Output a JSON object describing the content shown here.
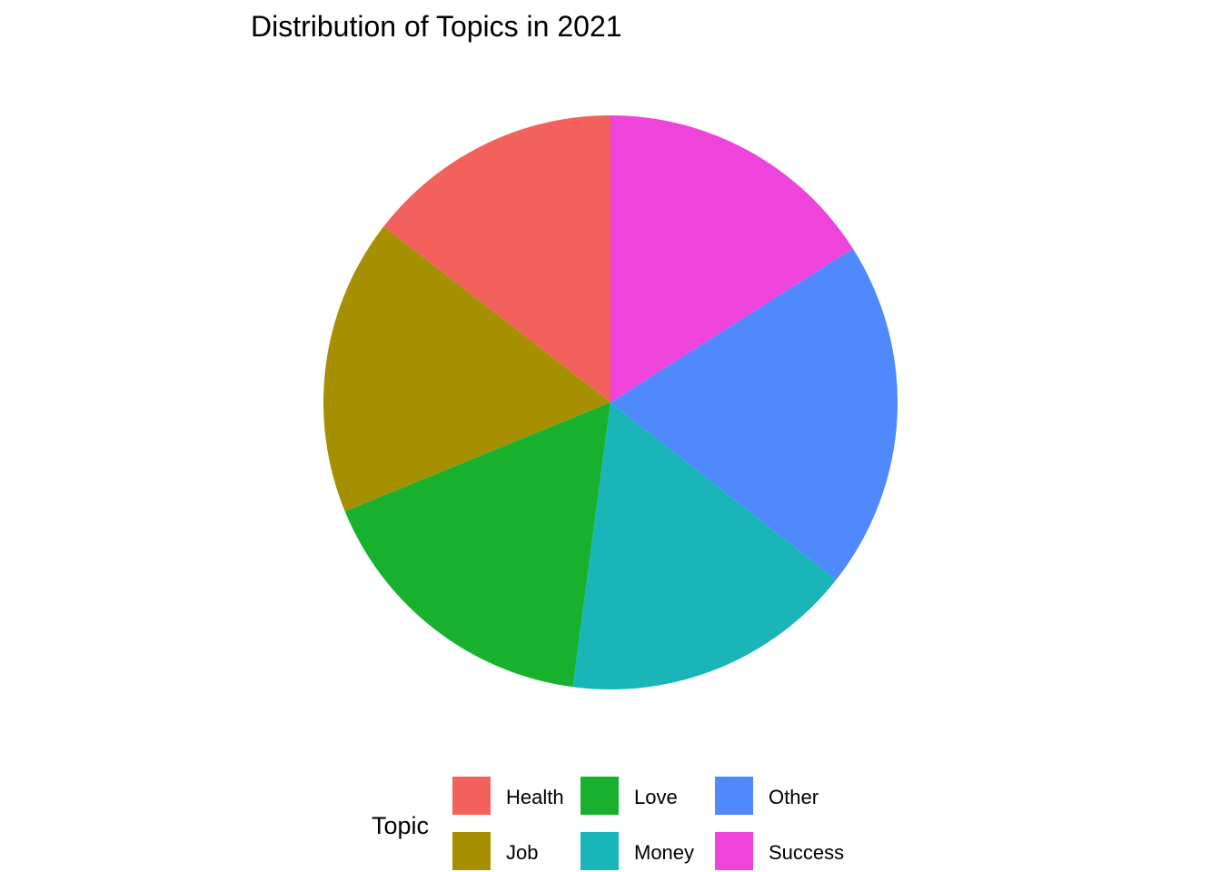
{
  "chart_data": {
    "type": "pie",
    "title": "Distribution of Topics in 2021",
    "legend": {
      "title": "Topic",
      "placement": "bottom"
    },
    "slices": [
      {
        "label": "Health",
        "value": 14.5,
        "color": "#F2615C"
      },
      {
        "label": "Job",
        "value": 16.7,
        "color": "#A68F00"
      },
      {
        "label": "Love",
        "value": 16.7,
        "color": "#18B12E"
      },
      {
        "label": "Money",
        "value": 16.5,
        "color": "#19B5B9"
      },
      {
        "label": "Other",
        "value": 19.6,
        "color": "#4F89FB"
      },
      {
        "label": "Success",
        "value": 16.0,
        "color": "#EE44DB"
      }
    ]
  }
}
